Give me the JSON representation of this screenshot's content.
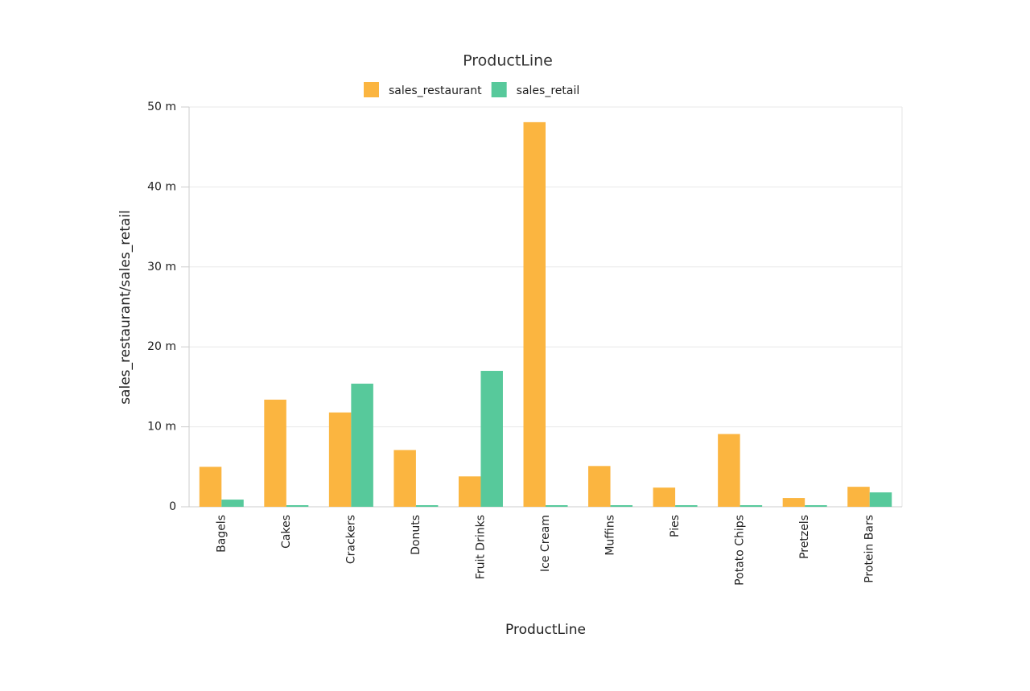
{
  "chart_data": {
    "type": "bar",
    "title": "ProductLine",
    "x_label": "ProductLine",
    "y_label": "sales_restaurant/sales_retail",
    "categories": [
      "Bagels",
      "Cakes",
      "Crackers",
      "Donuts",
      "Fruit Drinks",
      "Ice Cream",
      "Muffins",
      "Pies",
      "Potato Chips",
      "Pretzels",
      "Protein Bars"
    ],
    "series": [
      {
        "name": "sales_restaurant",
        "color": "#fbb540",
        "values": [
          5000000,
          13400000,
          11800000,
          7100000,
          3800000,
          48100000,
          5100000,
          2400000,
          9100000,
          1100000,
          2500000
        ]
      },
      {
        "name": "sales_retail",
        "color": "#57c99b",
        "values": [
          900000,
          200000,
          15400000,
          200000,
          17000000,
          200000,
          200000,
          200000,
          200000,
          200000,
          1800000
        ]
      }
    ],
    "ylim": [
      0,
      50000000
    ],
    "yticks": [
      0,
      {
        "value": 10000000,
        "label": "10 m"
      },
      {
        "value": 20000000,
        "label": "20 m"
      },
      {
        "value": 30000000,
        "label": "30 m"
      },
      {
        "value": 40000000,
        "label": "40 m"
      },
      {
        "value": 50000000,
        "label": "50 m"
      }
    ],
    "grid": true,
    "legend": "top"
  }
}
